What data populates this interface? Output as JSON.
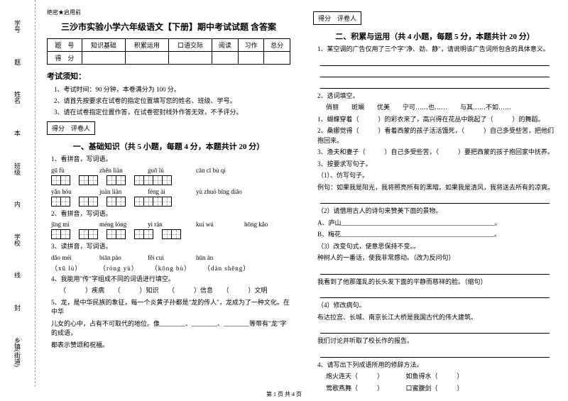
{
  "binding": {
    "labels": [
      "学号",
      "姓名",
      "班级",
      "学校",
      "乡镇(街道)"
    ],
    "marks": [
      "题",
      "本",
      "内",
      "线",
      "封"
    ]
  },
  "headerSmall": "绝密★启用前",
  "title": "三沙市实验小学六年级语文【下册】期中考试试题 含答案",
  "scoreTable": {
    "headers": [
      "题　号",
      "知识基础",
      "积累运用",
      "口语交际",
      "阅读",
      "习作",
      "总分"
    ],
    "row2": "得　分"
  },
  "notice": {
    "heading": "考试须知：",
    "items": [
      "1、考试时间：90 分钟，本卷满分为 100 分。",
      "2、请首先按要求在试卷的指定位置填写您的姓名、班级、学号。",
      "3、请在试卷指定位置作答，在试卷密封线外作答无效，不予评分。"
    ]
  },
  "grader": "得分　评卷人",
  "section1": {
    "heading": "一、基础知识（共 5 小题，每题 4 分，本题共计 20 分）",
    "q1": "1、看拼音，写词语。",
    "row1": [
      "gū  fù",
      "zhěn  liàn",
      "guō  lú",
      "cān  cī  bù  qí"
    ],
    "cells1": [
      2,
      2,
      2,
      4
    ],
    "row2": [
      "yǎn  hóu",
      "juàn  liàn",
      "féng  ài",
      "yù  zhuó  bīng  diāo"
    ],
    "cells2": [
      2,
      2,
      2,
      4
    ],
    "q2": "2、看拼音，写词语。",
    "row3": [
      "jīng  mì",
      "méng  lóng",
      "yì  rán",
      "kuí  wú",
      "hōng  kǎo"
    ],
    "cells3": [
      2,
      2,
      2,
      2,
      2
    ],
    "q3": "3、读拼音，写词语。",
    "row4": [
      "dǎo méi",
      "biān pào",
      "fěi cuì",
      "hūn àn"
    ],
    "row5": [
      "（xū lù）",
      "（róng yù）",
      "（kōng bù）",
      "（dàn shēng）"
    ],
    "q4": "4、我能用\"传\"字组成不同的词语进行填空。",
    "q4line": "（　　　）疾病　　（　　　）知识　　（　　　）信息　　（　　　）文明",
    "q5a": "5、龙，是中华民族的象征，每一个炎黄子孙都是\"龙的传人\"，龙成为了一种文化。在中华",
    "q5b": "儿女的心中，占有不可取代的地位。像________、________、________等带有\"龙\"字的成语，",
    "q5c": "都表示赞颂和祝福。"
  },
  "section2": {
    "heading": "二、积累与运用（共 4 小题，每题 5 分，本题共计 20 分）",
    "q1": "1、某空调的广告仅用了三个字\"净、劲、静\"，请说明该广告词所包含的具体意义。",
    "q2": "2、选词填空。",
    "q2a": "俏丽　　斑斓　　优美　　宁可……也……　　与其……不如……",
    "q2b": "1、蝴蝶穿着（　　　）的彩衣来了，高兴得在花丛中跳起了（　　　）的舞蹈。",
    "q2c": "2、桑娜觉得（　　　）看着西蒙的孩子活活饿死，（　　　）自己多受些苦，把他们抱回来。",
    "q2d": "3、渔夫和妻子（　　　）自己多受些苦，（　　　）要把西蒙的孩子抱回家中抚养。",
    "q3": "3、按要求写句子。",
    "q3a": "（1）、仿写句子。",
    "q3b": "例句：如果我是阳光，我将照亮所有的黑暗。如果我是清风，我将送去所有的凉爽。",
    "q3c": "（2）请借用古人的诗句来赞美下面的景物。",
    "q3d": "A、庐山________________________________________________。",
    "q3e": "B、梅花________________________________________________。",
    "q3f": "（3）改变句式，使意思保持不变。。",
    "q3g": "种树人的一番话，使我非常感动。（改为反问句）",
    "q3h": "我看到了他那蓬乱的长头发下面的平静而慈祥的脸。（缩句）",
    "q3i": "（4）修改病句。",
    "q3j": "布达拉宫、长城、南京长江大桥是我国古代的伟大建筑。",
    "q3k": "我们讨论并听取了校长作的报告。",
    "q4": "4、请写出下列成语所用的修辞方法。",
    "q4a": "炮火连天（　　　）　　　　如鱼得水（　　　）",
    "q4b": "莺歌燕舞（　　　）　　　　口蜜腹剑（　　　）"
  },
  "footer": "第 1 页 共 4 页"
}
